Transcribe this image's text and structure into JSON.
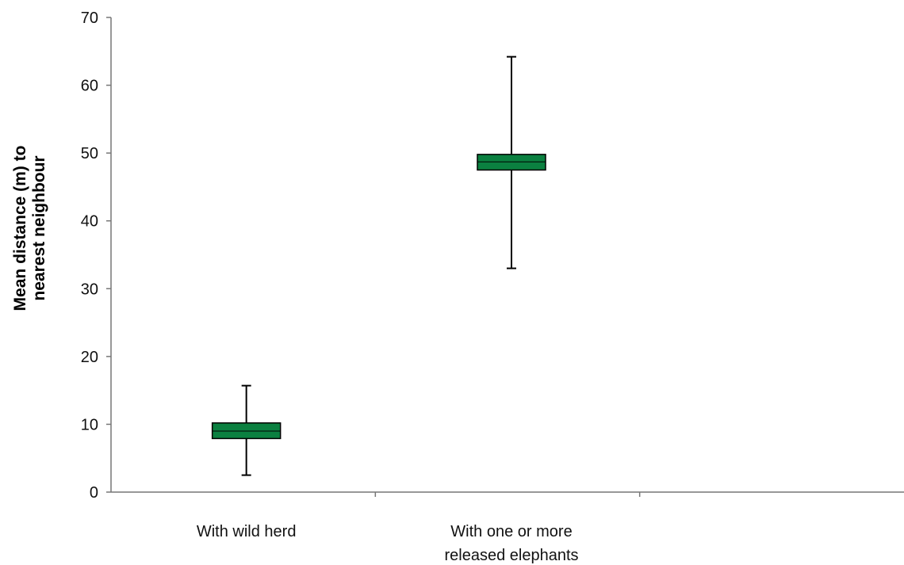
{
  "chart_data": {
    "type": "box",
    "title": "",
    "ylabel_lines": [
      "Mean distance (m) to",
      "nearest neighbour"
    ],
    "xlabel": "",
    "ylim": [
      0,
      70
    ],
    "yticks": [
      0,
      10,
      20,
      30,
      40,
      50,
      60,
      70
    ],
    "grid": false,
    "categories": [
      {
        "label_lines": [
          "With wild herd"
        ]
      },
      {
        "label_lines": [
          "With one or more",
          "released elephants"
        ]
      }
    ],
    "series": [
      {
        "color": "#0b8040",
        "boxes": [
          {
            "whisker_low": 2.5,
            "box_low": 7.9,
            "median": 9.0,
            "box_high": 10.2,
            "whisker_high": 15.7
          },
          {
            "whisker_low": 33.0,
            "box_low": 47.5,
            "median": 48.7,
            "box_high": 49.8,
            "whisker_high": 64.2
          }
        ]
      }
    ]
  }
}
